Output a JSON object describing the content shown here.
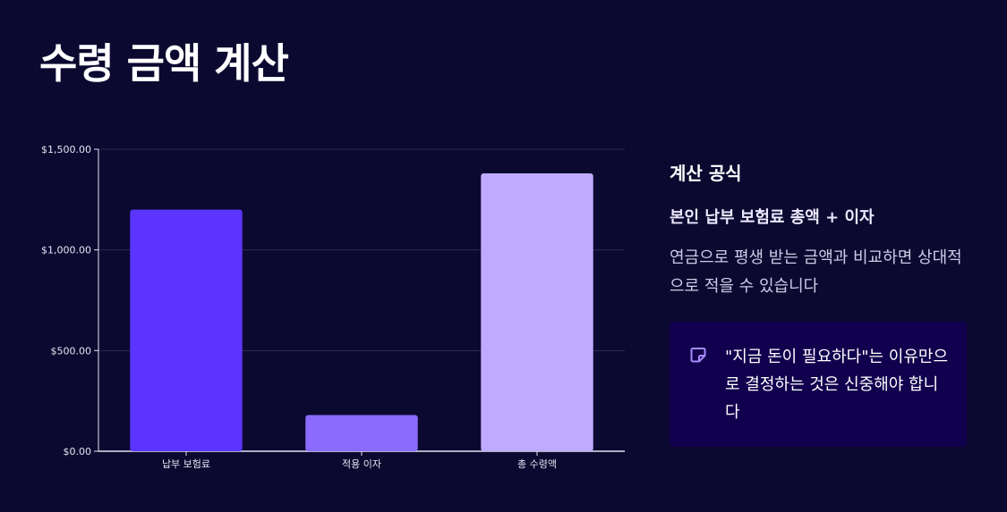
{
  "title": "수령 금액 계산",
  "colors": {
    "background": "#0c0930",
    "note_bg": "#11004d",
    "accent": "#a78bfa"
  },
  "chart_data": {
    "type": "bar",
    "categories": [
      "납부 보험료",
      "적용 이자",
      "총 수령액"
    ],
    "values": [
      1200,
      180,
      1380
    ],
    "colors": [
      "#5b35ff",
      "#8b6bff",
      "#bfaaff"
    ],
    "ylim": [
      0,
      1500
    ],
    "yticks": [
      0,
      500,
      1000,
      1500
    ],
    "ytick_labels": [
      "$0.00",
      "$500.00",
      "$1,000.00",
      "$1,500.00"
    ],
    "grid": true,
    "xlabel": "",
    "ylabel": ""
  },
  "side": {
    "heading": "계산 공식",
    "formula": "본인 납부 보험료 총액 + 이자",
    "description": "연금으로 평생 받는 금액과 비교하면 상대적으로 적을 수 있습니다"
  },
  "note": {
    "icon": "sticky-note-icon",
    "text": "\"지금 돈이 필요하다\"는 이유만으로 결정하는 것은 신중해야 합니다"
  }
}
